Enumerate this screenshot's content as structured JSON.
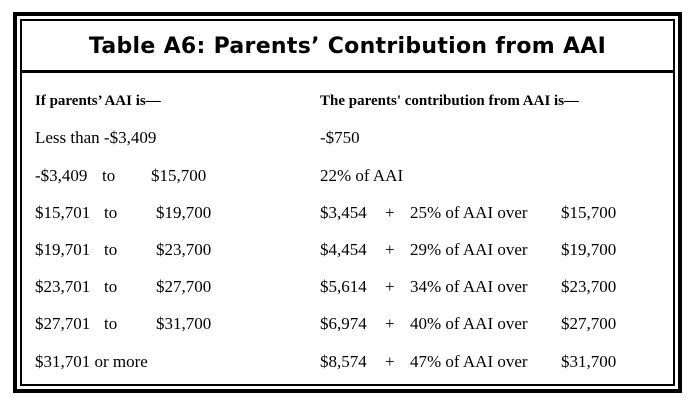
{
  "title": "Table A6:  Parents’ Contribution from AAI",
  "headers": {
    "left": "If  parents’ AAI is—",
    "right": "The parents' contribution from AAI is—"
  },
  "rows": [
    {
      "from": "Less than -$3,409",
      "to_word": "",
      "to": "",
      "base": "-$750",
      "plus": "",
      "pct": "",
      "over": ""
    },
    {
      "from": "-$3,409",
      "to_word": "to",
      "to": "$15,700",
      "base": "22% of AAI",
      "plus": "",
      "pct": "",
      "over": ""
    },
    {
      "from": "$15,701",
      "to_word": "to",
      "to": "$19,700",
      "base": "$3,454",
      "plus": "+",
      "pct": "25% of AAI over",
      "over": "$15,700"
    },
    {
      "from": "$19,701",
      "to_word": "to",
      "to": "$23,700",
      "base": "$4,454",
      "plus": "+",
      "pct": "29% of AAI over",
      "over": "$19,700"
    },
    {
      "from": "$23,701",
      "to_word": "to",
      "to": "$27,700",
      "base": "$5,614",
      "plus": "+",
      "pct": "34% of AAI over",
      "over": "$23,700"
    },
    {
      "from": "$27,701",
      "to_word": "to",
      "to": "$31,700",
      "base": "$6,974",
      "plus": "+",
      "pct": "40% of AAI over",
      "over": "$27,700"
    },
    {
      "from": "$31,701 or more",
      "to_word": "",
      "to": "",
      "base": "$8,574",
      "plus": "+",
      "pct": "47% of AAI over",
      "over": "$31,700"
    }
  ]
}
